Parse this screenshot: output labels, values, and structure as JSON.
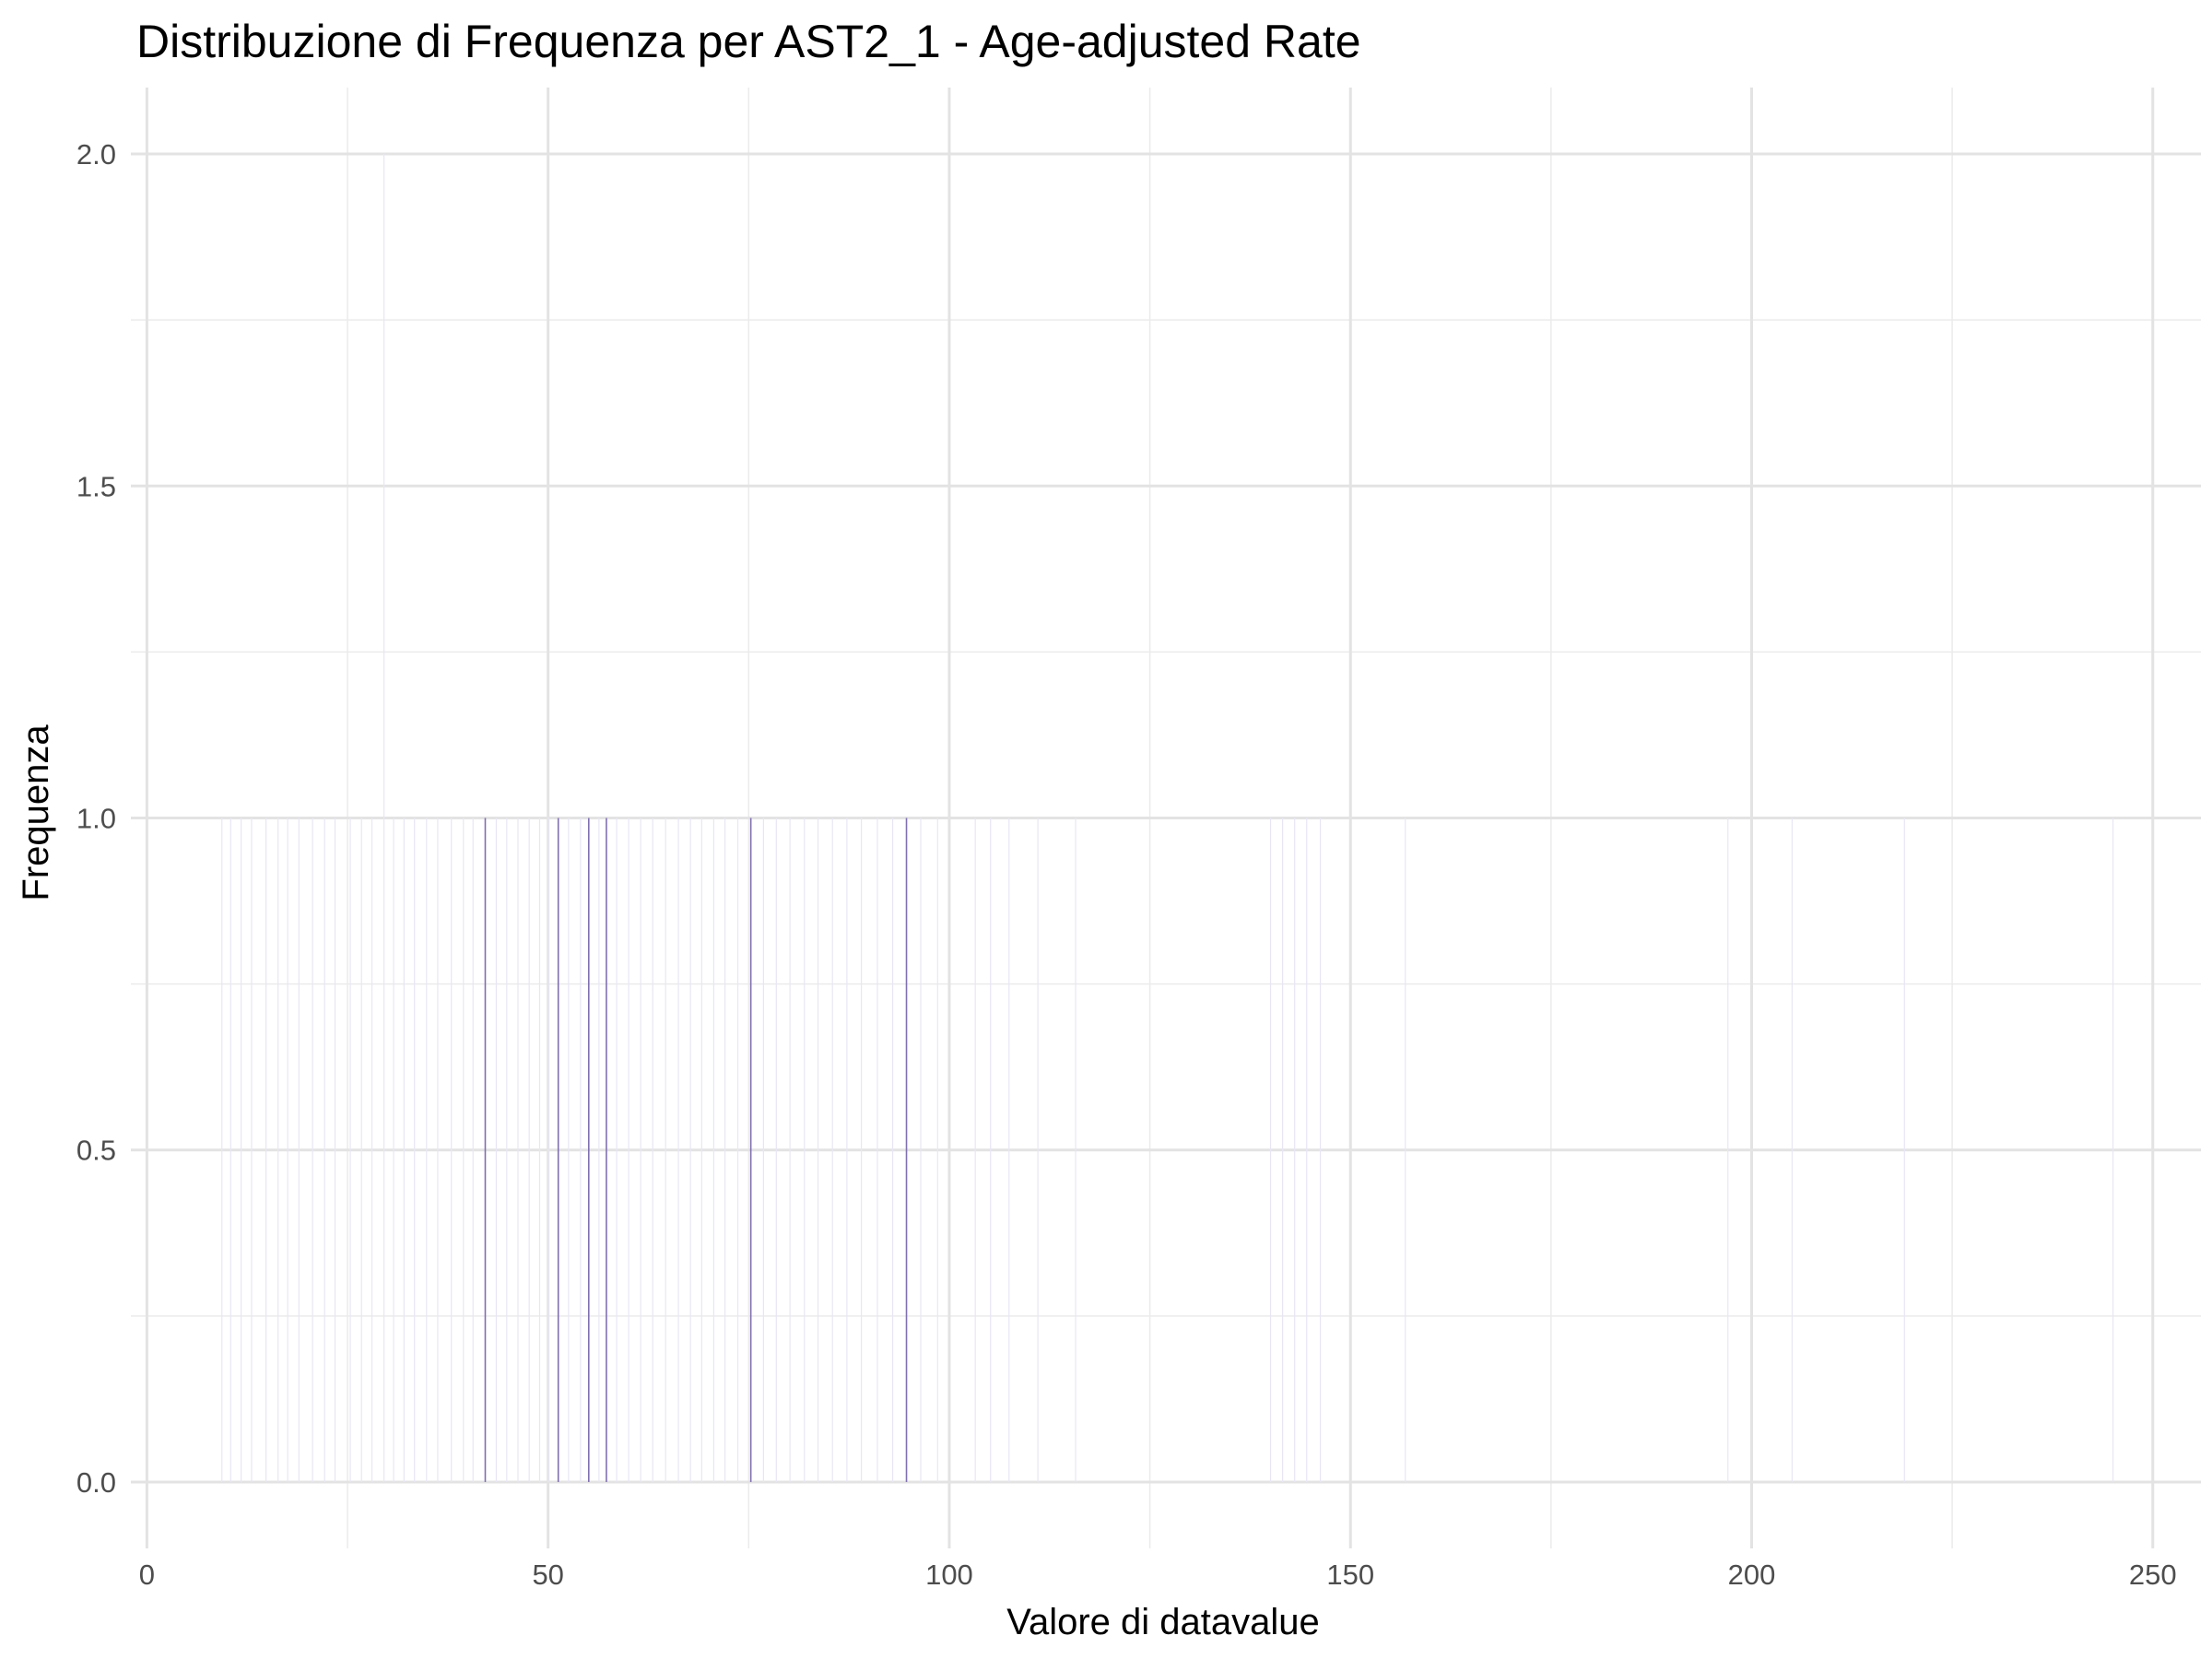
{
  "chart_data": {
    "type": "bar",
    "title": "Distribuzione di Frequenza per AST2_1 - Age-adjusted Rate",
    "xlabel": "Valore di datavalue",
    "ylabel": "Frequenza",
    "xlim": [
      -2,
      256
    ],
    "ylim": [
      -0.1,
      2.1
    ],
    "x_ticks": [
      0,
      50,
      100,
      150,
      200,
      250
    ],
    "x_minor_ticks": [
      25,
      75,
      125,
      175,
      225
    ],
    "y_ticks": [
      0.0,
      0.5,
      1.0,
      1.5,
      2.0
    ],
    "y_minor_ticks": [
      0.25,
      0.75,
      1.25,
      1.75
    ],
    "x_tick_labels": [
      "0",
      "50",
      "100",
      "150",
      "200",
      "250"
    ],
    "y_tick_labels": [
      "0.0",
      "0.5",
      "1.0",
      "1.5",
      "2.0"
    ],
    "grid": true,
    "bar_width": 0.05,
    "bar_color": "#8070b0",
    "faint_bar_color": "#e8e6f4",
    "x": [
      9.3,
      10.4,
      11.7,
      13.0,
      14.8,
      16.3,
      17.5,
      18.9,
      20.6,
      22.1,
      23.4,
      25.3,
      26.7,
      28.0,
      29.5,
      30.7,
      32.0,
      33.3,
      34.8,
      36.2,
      37.9,
      39.4,
      40.6,
      42.1,
      43.5,
      44.8,
      46.2,
      47.6,
      48.9,
      50.0,
      51.2,
      52.5,
      54.0,
      55.0,
      56.3,
      57.2,
      58.5,
      60.0,
      61.5,
      63.0,
      64.6,
      66.2,
      67.7,
      69.1,
      70.6,
      72.0,
      73.6,
      75.2,
      76.8,
      78.4,
      80.1,
      81.9,
      83.6,
      85.4,
      87.2,
      89.0,
      91.0,
      92.9,
      94.6,
      96.4,
      98.5,
      103.2,
      105.1,
      107.4,
      111.0,
      115.7,
      140.0,
      141.5,
      143.0,
      144.5,
      146.2,
      156.8,
      197.0,
      205.0,
      219.0,
      245.0
    ],
    "values": [
      1,
      1,
      1,
      1,
      1,
      1,
      1,
      1,
      1,
      1,
      1,
      1,
      1,
      1,
      2,
      1,
      1,
      1,
      1,
      1,
      1,
      1,
      1,
      1,
      1,
      1,
      1,
      1,
      1,
      1,
      1,
      1,
      1,
      1,
      1,
      1,
      1,
      1,
      1,
      1,
      1,
      1,
      1,
      1,
      1,
      1,
      1,
      1,
      1,
      1,
      1,
      1,
      1,
      1,
      1,
      1,
      1,
      1,
      1,
      1,
      1,
      1,
      1,
      1,
      1,
      1,
      1,
      1,
      1,
      1,
      1,
      1,
      1,
      1,
      1,
      1
    ],
    "highlight_x": [
      42.1,
      51.2,
      55.0,
      57.2,
      75.2,
      94.6
    ]
  }
}
